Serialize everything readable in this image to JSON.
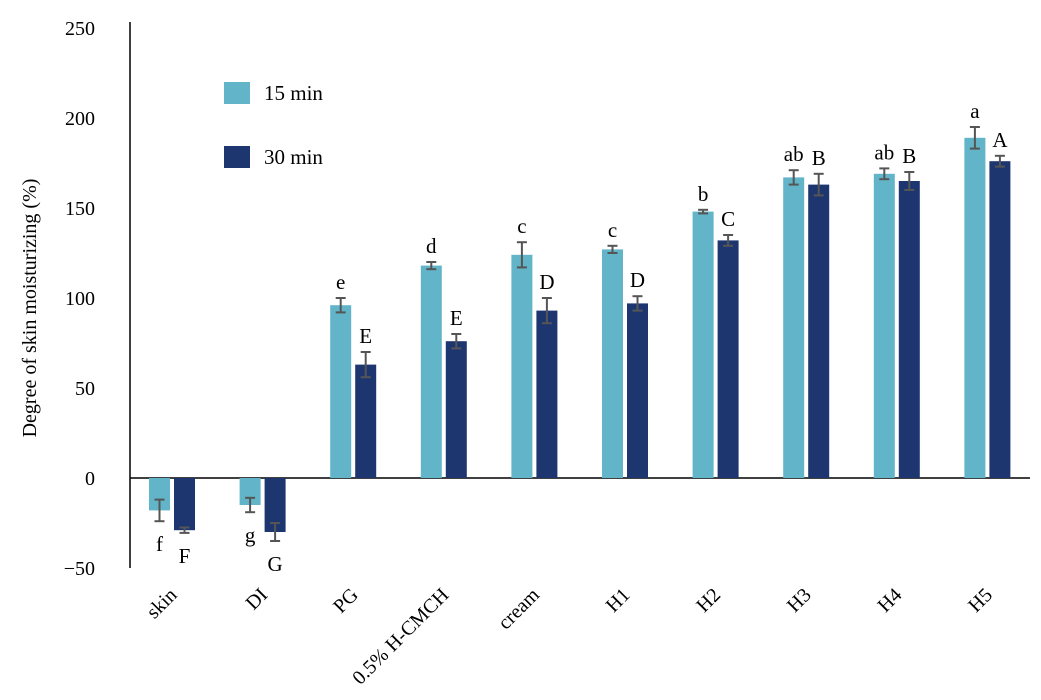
{
  "chart_data": {
    "type": "bar",
    "title": "",
    "xlabel": "",
    "ylabel": "Degree of skin moisturizing (%)",
    "ylim": [
      -50,
      250
    ],
    "yticks": [
      250,
      200,
      150,
      100,
      50,
      0,
      -50
    ],
    "ytick_labels": [
      "250",
      "200",
      "150",
      "100",
      "50",
      "0",
      "−50"
    ],
    "grid": false,
    "legend_position": "top-left",
    "categories": [
      "skin",
      "DI",
      "PG",
      "0.5% H-CMCH",
      "cream",
      "H1",
      "H2",
      "H3",
      "H4",
      "H5"
    ],
    "series": [
      {
        "name": "15 min",
        "color": "#62b5c8",
        "values": [
          -18,
          -15,
          96,
          118,
          124,
          127,
          148,
          167,
          169,
          189
        ],
        "errors": [
          6,
          4,
          4,
          2,
          7,
          2,
          1,
          4,
          3,
          6
        ],
        "labels": [
          "f",
          "g",
          "e",
          "d",
          "c",
          "c",
          "b",
          "ab",
          "ab",
          "a"
        ]
      },
      {
        "name": "30 min",
        "color": "#1d3670",
        "values": [
          -29,
          -30,
          63,
          76,
          93,
          97,
          132,
          163,
          165,
          176
        ],
        "errors": [
          1.5,
          5,
          7,
          4,
          7,
          4,
          3,
          6,
          5,
          3
        ],
        "labels": [
          "F",
          "G",
          "E",
          "E",
          "D",
          "D",
          "C",
          "B",
          "B",
          "A"
        ]
      }
    ]
  }
}
